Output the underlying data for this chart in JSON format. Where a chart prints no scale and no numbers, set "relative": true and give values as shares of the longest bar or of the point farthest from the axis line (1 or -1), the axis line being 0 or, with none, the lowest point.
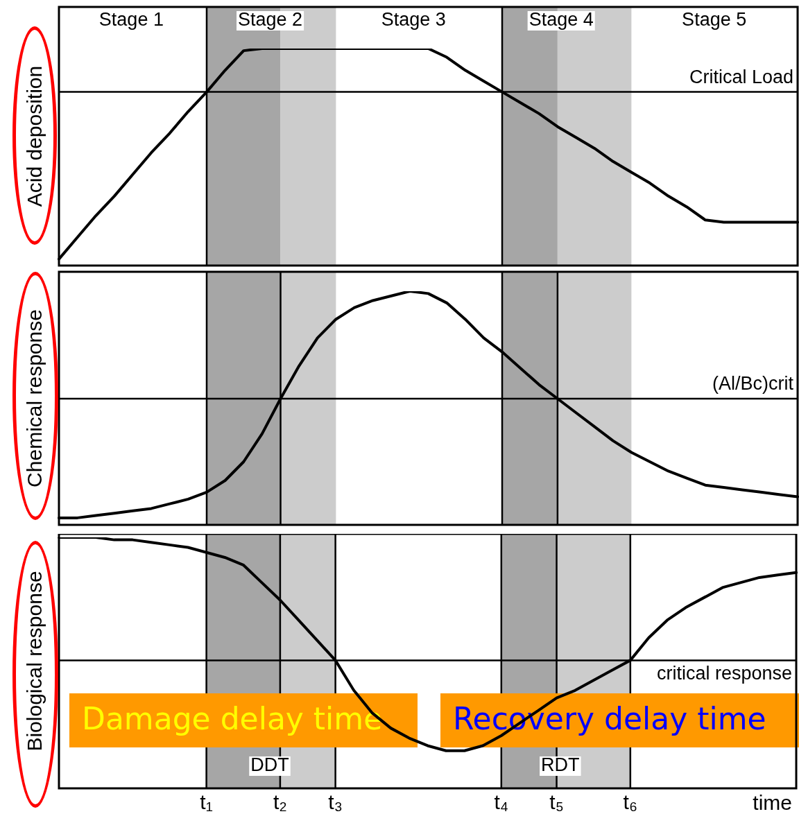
{
  "chart_data": [
    {
      "type": "line",
      "ylabel": "Acid deposition",
      "relative": true,
      "tick_labels": false,
      "legend": false,
      "marker": "none",
      "line_style": "solid",
      "categories": [
        null,
        null,
        null,
        null,
        null,
        null,
        null,
        null,
        "t₁",
        null,
        null,
        null,
        "t₂",
        null,
        null,
        "t₃",
        null,
        null,
        null,
        null,
        null,
        null,
        null,
        null,
        "t₄",
        null,
        null,
        "t₅",
        null,
        null,
        null,
        "t₆",
        null,
        null,
        null,
        null,
        null,
        null,
        null,
        null,
        null
      ],
      "series": [
        {
          "color": "#000000",
          "values": [
            0.03,
            0.13,
            0.23,
            0.32,
            0.42,
            0.52,
            0.61,
            0.71,
            0.8,
            0.9,
            0.99,
            1,
            1,
            1,
            1,
            1,
            1,
            1,
            1,
            1,
            1,
            0.96,
            0.9,
            0.85,
            0.8,
            0.75,
            0.7,
            0.64,
            0.59,
            0.54,
            0.48,
            0.43,
            0.38,
            0.32,
            0.27,
            0.21,
            0.2,
            0.2,
            0.2,
            0.2,
            0.2
          ]
        }
      ],
      "ref_lines": [
        {
          "axis": "y",
          "value": 0.8,
          "label": "Critical Load"
        },
        {
          "axis": "x",
          "value": "t₁"
        },
        {
          "axis": "x",
          "value": "t₄"
        }
      ],
      "bands": [
        {
          "axis": "x",
          "from": "t₁",
          "to": "t₂",
          "color": "#a6a6a6"
        },
        {
          "axis": "x",
          "from": "t₂",
          "to": "t₃",
          "color": "#cccccc"
        },
        {
          "axis": "x",
          "from": "t₄",
          "to": "t₅",
          "color": "#a6a6a6"
        },
        {
          "axis": "x",
          "from": "t₅",
          "to": "t₆",
          "color": "#cccccc"
        }
      ],
      "annotations": [
        "Stage 1",
        "Stage 2",
        "Stage 3",
        "Stage 4",
        "Stage 5"
      ]
    },
    {
      "type": "line",
      "ylabel": "Chemical response",
      "relative": true,
      "tick_labels": false,
      "legend": false,
      "marker": "none",
      "line_style": "solid",
      "categories": [
        null,
        null,
        null,
        null,
        null,
        null,
        null,
        null,
        "t₁",
        null,
        null,
        null,
        "t₂",
        null,
        null,
        "t₃",
        null,
        null,
        null,
        null,
        null,
        null,
        null,
        null,
        "t₄",
        null,
        null,
        "t₅",
        null,
        null,
        null,
        "t₆",
        null,
        null,
        null,
        null,
        null,
        null,
        null,
        null,
        null
      ],
      "series": [
        {
          "color": "#000000",
          "values": [
            0.03,
            0.03,
            0.04,
            0.05,
            0.06,
            0.07,
            0.09,
            0.11,
            0.14,
            0.19,
            0.27,
            0.39,
            0.54,
            0.68,
            0.8,
            0.88,
            0.93,
            0.96,
            0.98,
            1,
            0.99,
            0.95,
            0.88,
            0.8,
            0.74,
            0.67,
            0.6,
            0.54,
            0.48,
            0.42,
            0.36,
            0.31,
            0.27,
            0.23,
            0.2,
            0.17,
            0.16,
            0.15,
            0.14,
            0.13,
            0.12
          ]
        }
      ],
      "ref_lines": [
        {
          "axis": "y",
          "value": 0.54,
          "label": "(Al/Bc)crit"
        },
        {
          "axis": "x",
          "value": "t₁"
        },
        {
          "axis": "x",
          "value": "t₄"
        },
        {
          "axis": "x",
          "value": "t₂"
        },
        {
          "axis": "x",
          "value": "t₅"
        }
      ],
      "bands": [
        {
          "axis": "x",
          "from": "t₁",
          "to": "t₂",
          "color": "#a6a6a6"
        },
        {
          "axis": "x",
          "from": "t₂",
          "to": "t₃",
          "color": "#cccccc"
        },
        {
          "axis": "x",
          "from": "t₄",
          "to": "t₅",
          "color": "#a6a6a6"
        },
        {
          "axis": "x",
          "from": "t₅",
          "to": "t₆",
          "color": "#cccccc"
        }
      ]
    },
    {
      "type": "line",
      "ylabel": "Biological response",
      "xlabel": "time",
      "relative": true,
      "tick_labels": "x",
      "legend": false,
      "marker": "none",
      "line_style": "solid",
      "categories": [
        null,
        null,
        null,
        null,
        null,
        null,
        null,
        null,
        "t₁",
        null,
        null,
        null,
        "t₂",
        null,
        null,
        "t₃",
        null,
        null,
        null,
        null,
        null,
        null,
        null,
        null,
        "t₄",
        null,
        null,
        "t₅",
        null,
        null,
        null,
        "t₆",
        null,
        null,
        null,
        null,
        null,
        null,
        null,
        null,
        null
      ],
      "series": [
        {
          "color": "#000000",
          "values": [
            1,
            1,
            1,
            0.99,
            0.99,
            0.98,
            0.97,
            0.96,
            0.94,
            0.92,
            0.89,
            0.82,
            0.75,
            0.67,
            0.59,
            0.51,
            0.39,
            0.3,
            0.24,
            0.2,
            0.17,
            0.15,
            0.15,
            0.17,
            0.21,
            0.26,
            0.31,
            0.36,
            0.39,
            0.43,
            0.47,
            0.51,
            0.6,
            0.67,
            0.72,
            0.76,
            0.8,
            0.82,
            0.84,
            0.85,
            0.86
          ]
        }
      ],
      "ref_lines": [
        {
          "axis": "y",
          "value": 0.51,
          "label": "critical response"
        },
        {
          "axis": "x",
          "value": "t₁"
        },
        {
          "axis": "x",
          "value": "t₄"
        },
        {
          "axis": "x",
          "value": "t₂"
        },
        {
          "axis": "x",
          "value": "t₅"
        },
        {
          "axis": "x",
          "value": "t₃"
        },
        {
          "axis": "x",
          "value": "t₆"
        }
      ],
      "bands": [
        {
          "axis": "x",
          "from": "t₁",
          "to": "t₂",
          "color": "#a6a6a6"
        },
        {
          "axis": "x",
          "from": "t₂",
          "to": "t₃",
          "color": "#cccccc"
        },
        {
          "axis": "x",
          "from": "t₄",
          "to": "t₅",
          "color": "#a6a6a6"
        },
        {
          "axis": "x",
          "from": "t₅",
          "to": "t₆",
          "color": "#cccccc"
        }
      ],
      "annotations": [
        "DDT",
        "RDT",
        "Damage delay time",
        "Recovery delay time"
      ]
    }
  ]
}
